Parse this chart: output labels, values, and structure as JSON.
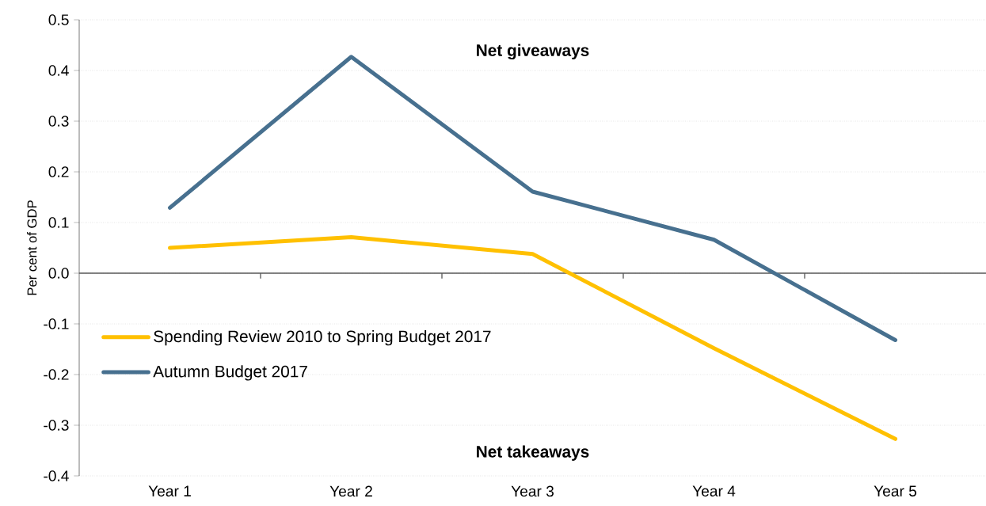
{
  "chart_data": {
    "type": "line",
    "ylabel": "Per cent of GDP",
    "categories": [
      "Year 1",
      "Year 2",
      "Year 3",
      "Year 4",
      "Year 5"
    ],
    "series": [
      {
        "name": "Spending Review 2010 to Spring Budget 2017",
        "color": "#ffc000",
        "values": [
          0.05,
          0.071,
          0.038,
          -0.148,
          -0.327
        ]
      },
      {
        "name": "Autumn Budget 2017",
        "color": "#47708f",
        "values": [
          0.129,
          0.427,
          0.161,
          0.066,
          -0.132
        ]
      }
    ],
    "ylim": [
      -0.4,
      0.5
    ],
    "yticks": [
      -0.4,
      -0.3,
      -0.2,
      -0.1,
      {
        "value": 0,
        "label": "0.0"
      },
      0.1,
      0.2,
      0.3,
      0.4,
      0.5
    ],
    "annotations": [
      "Net giveaways",
      "Net takeaways"
    ],
    "grid": "y",
    "legend": "bottom left",
    "marker": "none",
    "line_style": "solid"
  }
}
